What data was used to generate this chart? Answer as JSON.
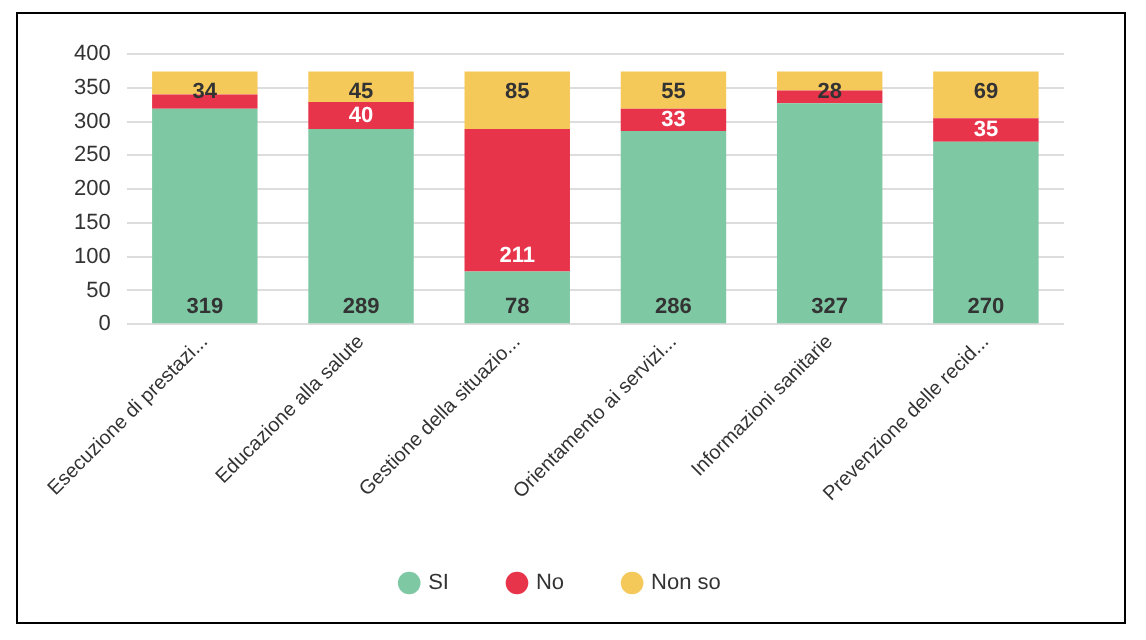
{
  "chart_data": {
    "type": "bar",
    "stacked": true,
    "categories": [
      "Esecuzione di prestazi...",
      "Educazione alla salute",
      "Gestione della situazio...",
      "Orientamento ai servizi...",
      "Informazioni sanitarie",
      "Prevenzione delle recid..."
    ],
    "series": [
      {
        "name": "SI",
        "color": "#7ec8a4",
        "values": [
          319,
          289,
          78,
          286,
          327,
          270
        ],
        "value_labels": [
          "319",
          "289",
          "78",
          "286",
          "327",
          "270"
        ]
      },
      {
        "name": "No",
        "color": "#e8344a",
        "values": [
          21,
          40,
          211,
          33,
          19,
          35
        ],
        "value_labels": [
          null,
          "40",
          "211",
          "33",
          null,
          "35"
        ]
      },
      {
        "name": "Non so",
        "color": "#f5c85a",
        "values": [
          34,
          45,
          85,
          55,
          28,
          69
        ],
        "value_labels": [
          "34",
          "45",
          "85",
          "55",
          "28",
          "69"
        ]
      }
    ],
    "ylim": [
      0,
      400
    ],
    "yticks": [
      0,
      50,
      100,
      150,
      200,
      250,
      300,
      350,
      400
    ],
    "grid": "y",
    "legend": "bottom",
    "marker": "circle"
  }
}
